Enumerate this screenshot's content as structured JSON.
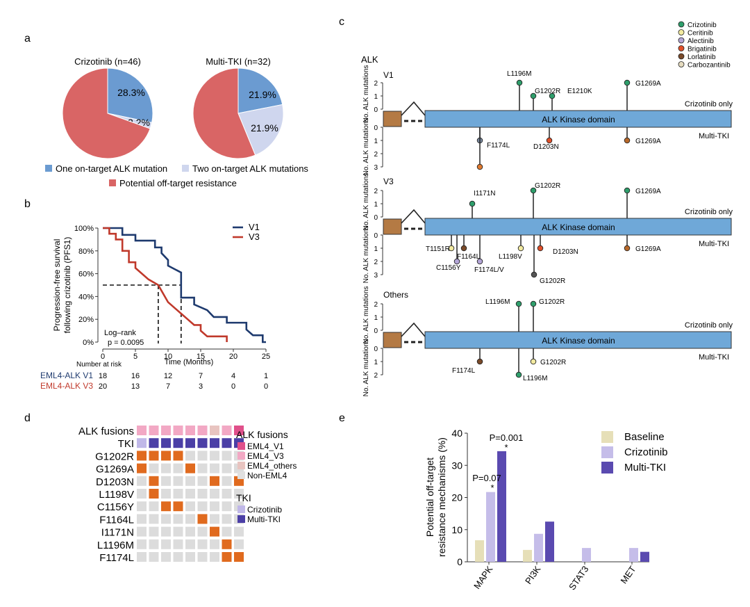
{
  "panel_a": {
    "letter": "a",
    "pie1_title": "Crizotinib (n=46)",
    "pie2_title": "Multi-TKI (n=32)",
    "legend": [
      {
        "label": "One on-target ALK mutation",
        "color": "#6b9bd1"
      },
      {
        "label": "Two on-target ALK mutations",
        "color": "#cfd6ee"
      },
      {
        "label": "Potential off-target resistance",
        "color": "#d96565"
      }
    ]
  },
  "panel_b": {
    "letter": "b",
    "ylabel_line1": "Progression-free survival",
    "ylabel_line2": "following crizotinib (PFS1)",
    "xlabel": "Time (Months)",
    "logrank_line1": "Log–rank",
    "logrank_line2": "p = 0.0095",
    "number_at_risk_label": "Number at risk",
    "risk_table": [
      {
        "group": "EML4-ALK V1",
        "color": "#1e3a6e",
        "counts": [
          "18",
          "16",
          "12",
          "7",
          "4",
          "1"
        ]
      },
      {
        "group": "EML4-ALK V3",
        "color": "#c0392b",
        "counts": [
          "20",
          "13",
          "7",
          "3",
          "0",
          "0"
        ]
      }
    ]
  },
  "panel_c": {
    "letter": "c",
    "legend": [
      {
        "label": "Crizotinib",
        "color": "#2e9e6b"
      },
      {
        "label": "Ceritinib",
        "color": "#f2eaa0"
      },
      {
        "label": "Alectinib",
        "color": "#b3a5d6"
      },
      {
        "label": "Brigatinib",
        "color": "#e0502a"
      },
      {
        "label": "Lorlatinib",
        "color": "#7a4a2a"
      },
      {
        "label": "Carbozantinib",
        "color": "#e6dcc0"
      }
    ],
    "gene_label": "ALK",
    "domain_label": "ALK Kinase domain",
    "yaxis_top": "No. ALK mutations",
    "yaxis_bottom": "No. ALK mutations",
    "crizotinib_only": "Crizotinib only",
    "multi_tki": "Multi-TKI",
    "tracks": [
      {
        "name": "V1",
        "up": [
          {
            "label": "L1196M",
            "value": 2,
            "color": "#2e9e6b"
          },
          {
            "label": "G1202R",
            "value": 1,
            "color": "#2e9e6b"
          },
          {
            "label": "E1210K",
            "value": 1,
            "color": "#2e9e6b"
          },
          {
            "label": "G1269A",
            "value": 2,
            "color": "#2e9e6b"
          }
        ],
        "down": [
          {
            "label": "F1174L",
            "value": 1,
            "color": "#7a8aa0"
          },
          {
            "label": "F1174L",
            "value": 3,
            "color": "#e07a30"
          },
          {
            "label": "D1203N",
            "value": 1,
            "color": "#e0502a"
          },
          {
            "label": "G1269A",
            "value": 1,
            "color": "#b8692a"
          }
        ]
      },
      {
        "name": "V3",
        "up": [
          {
            "label": "I1171N",
            "value": 1,
            "color": "#2e9e6b"
          },
          {
            "label": "G1202R",
            "value": 2,
            "color": "#2e9e6b"
          },
          {
            "label": "G1269A",
            "value": 2,
            "color": "#2e9e6b"
          }
        ],
        "down": [
          {
            "label": "T1151R",
            "value": 1,
            "color": "#f2eaa0"
          },
          {
            "label": "C1156Y",
            "value": 2,
            "color": "#b3a5d6"
          },
          {
            "label": "F1164L",
            "value": 1,
            "color": "#7a4a2a"
          },
          {
            "label": "F1174L/V",
            "value": 2,
            "color": "#b3a5d6"
          },
          {
            "label": "L1198V",
            "value": 1,
            "color": "#f2eaa0"
          },
          {
            "label": "D1203N",
            "value": 1,
            "color": "#e0502a"
          },
          {
            "label": "G1202R",
            "value": 3,
            "color": "#555555"
          },
          {
            "label": "G1269A",
            "value": 1,
            "color": "#b8692a"
          }
        ]
      },
      {
        "name": "Others",
        "up": [
          {
            "label": "L1196M",
            "value": 2,
            "color": "#2e9e6b"
          },
          {
            "label": "G1202R",
            "value": 2,
            "color": "#2e9e6b"
          }
        ],
        "down": [
          {
            "label": "F1174L",
            "value": 1,
            "color": "#7a4a2a"
          },
          {
            "label": "L1196M",
            "value": 2,
            "color": "#2e9e6b"
          },
          {
            "label": "G1202R",
            "value": 1,
            "color": "#f2eaa0"
          }
        ]
      }
    ]
  },
  "panel_d": {
    "letter": "d",
    "row_labels": [
      "ALK fusions",
      "TKI",
      "G1202R",
      "G1269A",
      "D1203N",
      "L1198V",
      "C1156Y",
      "F1164L",
      "I1171N",
      "L1196M",
      "F1174L"
    ],
    "fusion_legend_title": "ALK fusions",
    "fusion_legend": [
      {
        "label": "EML4_V1",
        "color": "#e0508a"
      },
      {
        "label": "EML4_V3",
        "color": "#f2a8c4"
      },
      {
        "label": "EML4_others",
        "color": "#e8c4c0"
      },
      {
        "label": "Non-EML4",
        "color": "#e0e0e0"
      }
    ],
    "tki_legend_title": "TKI",
    "tki_legend": [
      {
        "label": "Crizotinib",
        "color": "#c0b8e8"
      },
      {
        "label": "Multi-TKI",
        "color": "#4b3fa6"
      }
    ]
  },
  "chart_data": {
    "type": "bar",
    "panel_letter": "e",
    "categories": [
      "MAPK",
      "PI3K",
      "STAT3",
      "MET"
    ],
    "series": [
      {
        "name": "Baseline",
        "color": "#e6dfb8",
        "values": [
          6.7,
          3.7,
          0,
          0
        ]
      },
      {
        "name": "Crizotinib",
        "color": "#c5bde9",
        "values": [
          21.7,
          8.7,
          4.3,
          4.3
        ]
      },
      {
        "name": "Multi-TKI",
        "color": "#5a4ab0",
        "values": [
          34.4,
          12.5,
          0,
          3.1
        ]
      }
    ],
    "ylabel_line1": "Potential off-target",
    "ylabel_line2": "resistance mechanisms (%)",
    "ylim": [
      0,
      40
    ],
    "yticks": [
      "0",
      "10",
      "20",
      "30",
      "40"
    ],
    "annotations": [
      {
        "text": "P=0.07",
        "star": "*"
      },
      {
        "text": "P=0.001",
        "star": "*"
      }
    ]
  },
  "pie_data": [
    {
      "name": "Crizotinib",
      "slices": [
        {
          "label": "28.3%",
          "value": 28.3,
          "color": "#6b9bd1"
        },
        {
          "label": "2.2%",
          "value": 2.2,
          "color": "#cfd6ee"
        },
        {
          "label": "",
          "value": 69.5,
          "color": "#d96565"
        }
      ]
    },
    {
      "name": "Multi-TKI",
      "slices": [
        {
          "label": "21.9%",
          "value": 21.9,
          "color": "#6b9bd1"
        },
        {
          "label": "21.9%",
          "value": 21.9,
          "color": "#cfd6ee"
        },
        {
          "label": "",
          "value": 56.2,
          "color": "#d96565"
        }
      ]
    }
  ],
  "km_data": {
    "x_ticks": [
      "0",
      "5",
      "10",
      "15",
      "20",
      "25"
    ],
    "y_ticks": [
      "0%",
      "20%",
      "40%",
      "60%",
      "80%",
      "100%"
    ],
    "series": [
      {
        "name": "V1",
        "color": "#1e3a6e",
        "steps": [
          [
            0,
            1.0
          ],
          [
            3,
            1.0
          ],
          [
            3,
            0.94
          ],
          [
            5,
            0.94
          ],
          [
            5,
            0.89
          ],
          [
            8,
            0.89
          ],
          [
            8,
            0.83
          ],
          [
            9,
            0.83
          ],
          [
            9,
            0.78
          ],
          [
            10,
            0.72
          ],
          [
            10,
            0.67
          ],
          [
            12,
            0.61
          ],
          [
            12,
            0.39
          ],
          [
            14,
            0.39
          ],
          [
            14,
            0.33
          ],
          [
            16,
            0.28
          ],
          [
            17,
            0.22
          ],
          [
            19,
            0.22
          ],
          [
            19,
            0.17
          ],
          [
            22,
            0.17
          ],
          [
            22,
            0.11
          ],
          [
            23,
            0.06
          ],
          [
            24.5,
            0.06
          ],
          [
            24.5,
            0.0
          ],
          [
            25,
            0.0
          ]
        ]
      },
      {
        "name": "V3",
        "color": "#c0392b",
        "steps": [
          [
            0,
            1.0
          ],
          [
            1,
            1.0
          ],
          [
            1,
            0.95
          ],
          [
            2,
            0.95
          ],
          [
            2,
            0.9
          ],
          [
            3,
            0.9
          ],
          [
            3,
            0.8
          ],
          [
            4,
            0.8
          ],
          [
            4,
            0.7
          ],
          [
            5,
            0.7
          ],
          [
            5,
            0.65
          ],
          [
            6,
            0.6
          ],
          [
            7,
            0.55
          ],
          [
            8.5,
            0.5
          ],
          [
            9,
            0.45
          ],
          [
            10,
            0.35
          ],
          [
            11,
            0.3
          ],
          [
            12,
            0.25
          ],
          [
            13,
            0.2
          ],
          [
            14,
            0.15
          ],
          [
            15,
            0.15
          ],
          [
            15,
            0.1
          ],
          [
            16,
            0.05
          ],
          [
            19,
            0.05
          ],
          [
            19,
            0.0
          ]
        ]
      }
    ]
  },
  "oncoprint": {
    "fusion_row": [
      "#f2a8c4",
      "#f2a8c4",
      "#f2a8c4",
      "#f2a8c4",
      "#f2a8c4",
      "#f2a8c4",
      "#e8c4c0",
      "#f2a8c4",
      "#e0508a"
    ],
    "tki_row": [
      "#c0b8e8",
      "#4b3fa6",
      "#4b3fa6",
      "#4b3fa6",
      "#4b3fa6",
      "#4b3fa6",
      "#4b3fa6",
      "#4b3fa6",
      "#4b3fa6"
    ],
    "mutations": [
      [
        1,
        1,
        1,
        1,
        0,
        0,
        0,
        0,
        0
      ],
      [
        1,
        0,
        0,
        0,
        1,
        0,
        0,
        0,
        0
      ],
      [
        0,
        1,
        0,
        0,
        0,
        0,
        1,
        0,
        1
      ],
      [
        0,
        1,
        0,
        0,
        0,
        0,
        0,
        0,
        0
      ],
      [
        0,
        0,
        1,
        1,
        0,
        0,
        0,
        0,
        0
      ],
      [
        0,
        0,
        0,
        0,
        0,
        1,
        0,
        0,
        0
      ],
      [
        0,
        0,
        0,
        0,
        0,
        0,
        1,
        0,
        0
      ],
      [
        0,
        0,
        0,
        0,
        0,
        0,
        0,
        1,
        0
      ],
      [
        0,
        0,
        0,
        0,
        0,
        0,
        0,
        1,
        1
      ]
    ]
  }
}
